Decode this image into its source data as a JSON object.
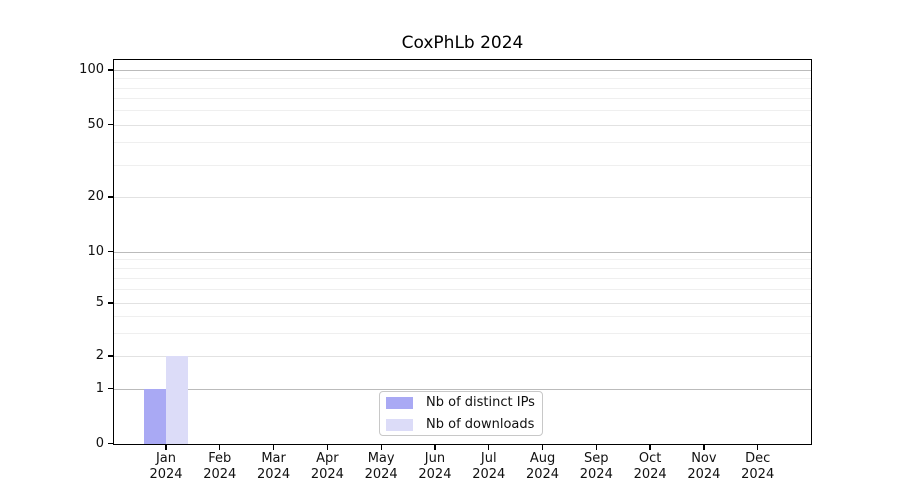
{
  "chart_data": {
    "type": "bar",
    "title": "CoxPhLb 2024",
    "year_label": "2024",
    "months": [
      "Jan",
      "Feb",
      "Mar",
      "Apr",
      "May",
      "Jun",
      "Jul",
      "Aug",
      "Sep",
      "Oct",
      "Nov",
      "Dec"
    ],
    "categories": [
      "Jan 2024",
      "Feb 2024",
      "Mar 2024",
      "Apr 2024",
      "May 2024",
      "Jun 2024",
      "Jul 2024",
      "Aug 2024",
      "Sep 2024",
      "Oct 2024",
      "Nov 2024",
      "Dec 2024"
    ],
    "series": [
      {
        "name": "Nb of distinct IPs",
        "color": "#a9a9f4",
        "values": [
          1,
          0,
          0,
          0,
          0,
          0,
          0,
          0,
          0,
          0,
          0,
          0
        ]
      },
      {
        "name": "Nb of downloads",
        "color": "#dcdcf8",
        "values": [
          2,
          0,
          0,
          0,
          0,
          0,
          0,
          0,
          0,
          0,
          0,
          0
        ]
      }
    ],
    "y_axis": {
      "scale": "log1p",
      "tick_values": [
        100,
        50,
        20,
        10,
        5,
        2,
        1,
        0
      ],
      "tick_labels": [
        "100",
        "50",
        "20",
        "10",
        "5",
        "2",
        "1",
        "0"
      ],
      "minor_gridline_values": [
        90,
        80,
        70,
        60,
        40,
        30,
        9,
        8,
        7,
        6,
        4,
        3
      ],
      "range": [
        0,
        110
      ]
    },
    "legend": {
      "position": "inside-bottom-center"
    },
    "grid": {
      "decade_color": "#bbbbbb",
      "sub_major_color": "#e2e2e2",
      "minor_color": "#efefef"
    }
  }
}
